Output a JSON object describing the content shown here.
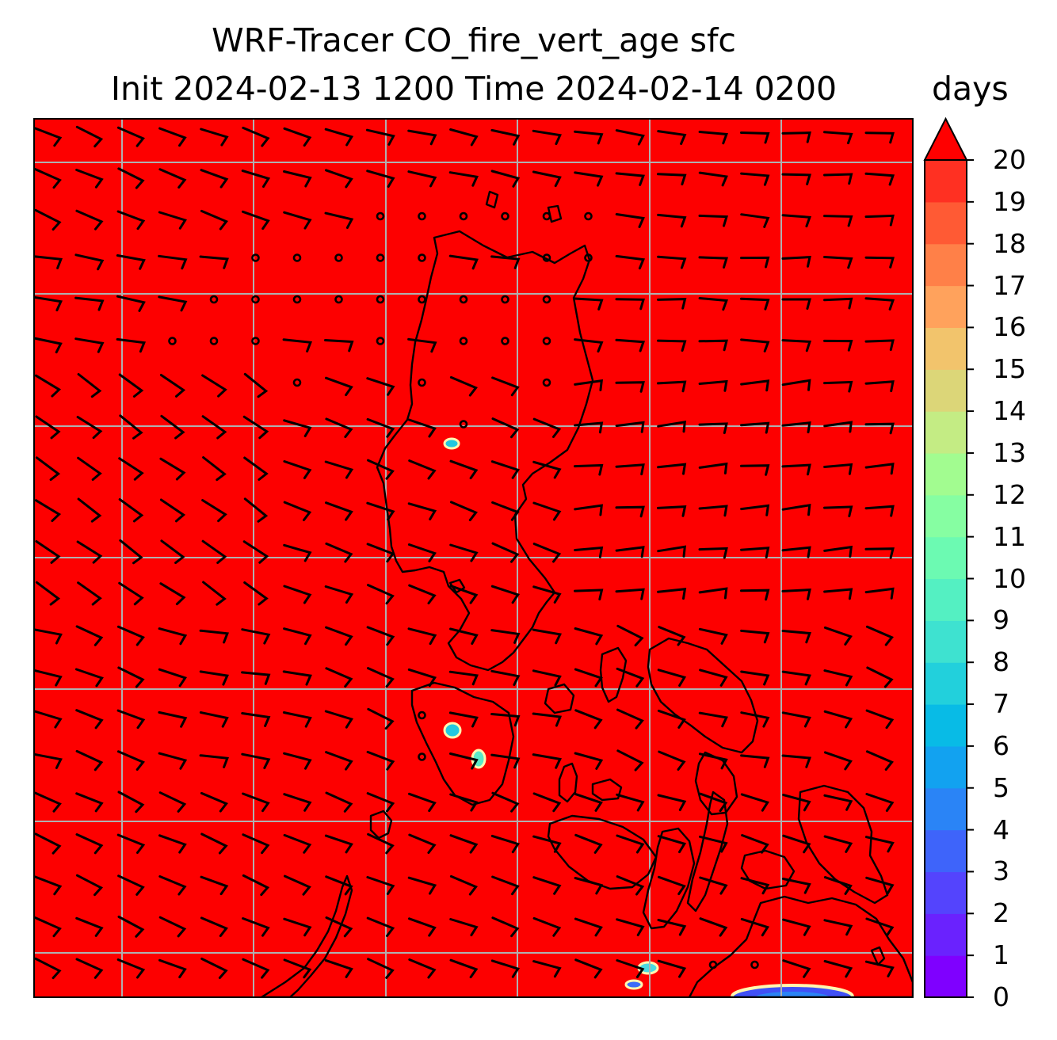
{
  "title": {
    "line1": "WRF-Tracer CO_fire_vert_age sfc",
    "line2": "Init 2024-02-13 1200 Time 2024-02-14 0200"
  },
  "colorbar": {
    "units": "days",
    "ticks": [
      "0",
      "1",
      "2",
      "3",
      "4",
      "5",
      "6",
      "7",
      "8",
      "9",
      "10",
      "11",
      "12",
      "13",
      "14",
      "15",
      "16",
      "17",
      "18",
      "19",
      "20"
    ],
    "extend": "max",
    "colors": [
      "#7f00ff",
      "#6a22fe",
      "#5444fd",
      "#3e64fa",
      "#2a84f6",
      "#12a2f0",
      "#08bbe6",
      "#22d0dc",
      "#3ee2d0",
      "#54f0c2",
      "#6cfab2",
      "#86fea2",
      "#a2fc90",
      "#c4ec84",
      "#dcd678",
      "#f2c46c",
      "#ffa25c",
      "#ff8048",
      "#ff5a34",
      "#ff3022",
      "#ff1010",
      "#ff0000"
    ]
  },
  "map": {
    "field_color": "#fd0000",
    "gridline_color": "#b0b0b0",
    "coastline_color": "#000000",
    "features": [
      "wind-barbs",
      "calm-circles",
      "coastlines",
      "gridlines"
    ]
  }
}
